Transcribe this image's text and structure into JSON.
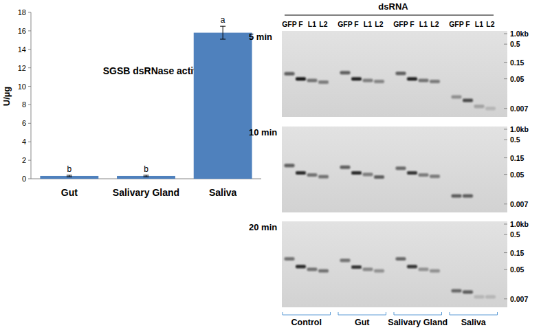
{
  "chart_data": {
    "type": "bar",
    "title": "SGSB dsRNase activity",
    "y_label": "U/µg",
    "categories": [
      "Gut",
      "Salivary Gland",
      "Saliva"
    ],
    "values": [
      0.3,
      0.3,
      15.8
    ],
    "errors": [
      0.08,
      0.08,
      0.7
    ],
    "annotations": [
      "b",
      "b",
      "a"
    ],
    "color": "#4f81bd",
    "ylim": [
      0,
      18
    ],
    "yticks": [
      0,
      2,
      4,
      6,
      8,
      10,
      12,
      14,
      16,
      18
    ],
    "grid": false
  },
  "gel": {
    "header": "dsRNA",
    "lane_labels": [
      "GFP",
      "F",
      "L1",
      "L2"
    ],
    "groups": [
      "Control",
      "Gut",
      "Salivary Gland",
      "Saliva"
    ],
    "ladder": {
      "log": true,
      "ylim": [
        0.004,
        1.2
      ],
      "ticks": [
        {
          "value": 1.0,
          "label": "1.0kb"
        },
        0.5,
        0.15,
        0.05,
        0.007
      ]
    },
    "panels": [
      {
        "label": "5 min",
        "bands": [
          0.07,
          0.05,
          0.045,
          0.04,
          0.075,
          0.05,
          0.045,
          0.042,
          0.072,
          0.05,
          0.045,
          0.042,
          0.015,
          0.012,
          0.008,
          0.007
        ],
        "intensity": [
          0.6,
          0.95,
          0.5,
          0.45,
          0.6,
          0.9,
          0.45,
          0.4,
          0.6,
          0.9,
          0.5,
          0.45,
          0.35,
          0.7,
          0.25,
          0.15
        ]
      },
      {
        "label": "10 min",
        "bands": [
          0.09,
          0.055,
          0.048,
          0.043,
          0.08,
          0.055,
          0.05,
          0.042,
          0.075,
          0.055,
          0.048,
          0.044,
          0.012,
          0.012,
          null,
          null
        ],
        "intensity": [
          0.6,
          0.85,
          0.5,
          0.5,
          0.6,
          0.85,
          0.45,
          0.6,
          0.55,
          0.8,
          0.45,
          0.45,
          0.6,
          0.6,
          null,
          null
        ]
      },
      {
        "label": "20 min",
        "bands": [
          0.1,
          0.06,
          0.05,
          0.045,
          0.09,
          0.058,
          0.05,
          0.045,
          0.1,
          0.06,
          0.05,
          0.045,
          0.012,
          0.011,
          0.008,
          0.008
        ],
        "intensity": [
          0.5,
          0.85,
          0.5,
          0.5,
          0.5,
          0.8,
          0.4,
          0.35,
          0.55,
          0.8,
          0.35,
          0.35,
          0.55,
          0.6,
          0.15,
          0.15
        ]
      }
    ]
  }
}
